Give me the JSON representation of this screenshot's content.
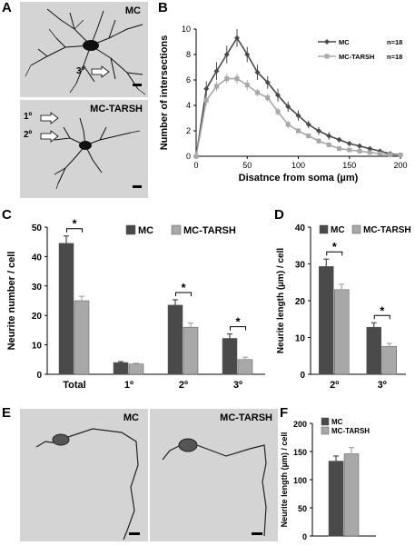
{
  "panels": {
    "A": {
      "letter": "A",
      "top_label": "MC",
      "bottom_label": "MC-TARSH",
      "arrow_3": "3º",
      "arrow_1": "1º",
      "arrow_2": "2º"
    },
    "B": {
      "letter": "B"
    },
    "C": {
      "letter": "C"
    },
    "D": {
      "letter": "D"
    },
    "E": {
      "letter": "E",
      "left_label": "MC",
      "right_label": "MC-TARSH"
    },
    "F": {
      "letter": "F"
    }
  },
  "colors": {
    "mc": "#4a4a4a",
    "tarsh": "#a8a8a8"
  },
  "chart_data": [
    {
      "id": "B",
      "type": "line",
      "xlabel": "Disatnce from soma (µm)",
      "ylabel": "Number of intersections",
      "xlim": [
        0,
        200
      ],
      "ylim": [
        0,
        10
      ],
      "xticks": [
        0,
        50,
        100,
        150,
        200
      ],
      "yticks": [
        0,
        2,
        4,
        6,
        8,
        10
      ],
      "legend_position": "top-right",
      "series": [
        {
          "name": "MC",
          "n": "n=18",
          "color": "#4a4a4a",
          "x": [
            0,
            10,
            20,
            30,
            40,
            50,
            60,
            70,
            80,
            90,
            100,
            110,
            120,
            130,
            140,
            150,
            160,
            170,
            180,
            190,
            200
          ],
          "y": [
            0,
            5.3,
            6.7,
            8.0,
            9.3,
            8.0,
            6.6,
            5.8,
            4.8,
            3.9,
            3.2,
            2.5,
            2.0,
            1.6,
            1.3,
            1.0,
            0.8,
            0.6,
            0.4,
            0.2,
            0.1
          ],
          "err": [
            0,
            0.6,
            0.7,
            0.7,
            0.7,
            0.6,
            0.6,
            0.5,
            0.5,
            0.4,
            0.4,
            0.3,
            0.3,
            0.3,
            0.2,
            0.2,
            0.2,
            0.1,
            0.1,
            0.1,
            0.1
          ]
        },
        {
          "name": "MC-TARSH",
          "n": "n=18",
          "color": "#a8a8a8",
          "x": [
            0,
            10,
            20,
            30,
            40,
            50,
            60,
            70,
            80,
            90,
            100,
            110,
            120,
            130,
            140,
            150,
            160,
            170,
            180,
            190,
            200
          ],
          "y": [
            0,
            4.4,
            5.5,
            6.1,
            6.1,
            5.6,
            5.0,
            4.6,
            3.5,
            2.5,
            2.0,
            1.6,
            1.2,
            0.9,
            0.6,
            0.5,
            0.4,
            0.3,
            0.2,
            0.1,
            0.1
          ],
          "err": [
            0,
            0.4,
            0.4,
            0.4,
            0.4,
            0.4,
            0.3,
            0.3,
            0.3,
            0.3,
            0.2,
            0.2,
            0.2,
            0.2,
            0.1,
            0.1,
            0.1,
            0.1,
            0.1,
            0.1,
            0.1
          ]
        }
      ]
    },
    {
      "id": "C",
      "type": "bar",
      "ylabel": "Neurite number / cell",
      "categories": [
        "Total",
        "1º",
        "2º",
        "3º"
      ],
      "ylim": [
        0,
        50
      ],
      "yticks": [
        0,
        10,
        20,
        30,
        40,
        50
      ],
      "legend_position": "top",
      "series": [
        {
          "name": "MC",
          "color": "#4a4a4a",
          "values": [
            44.5,
            4.0,
            23.5,
            12.2
          ],
          "err": [
            2.5,
            0.3,
            1.8,
            1.5
          ]
        },
        {
          "name": "MC-TARSH",
          "color": "#a8a8a8",
          "values": [
            25.0,
            3.5,
            16.0,
            5.0
          ],
          "err": [
            1.5,
            0.3,
            1.4,
            0.8
          ]
        }
      ],
      "significance": [
        0,
        2,
        3
      ],
      "sig_label": "*"
    },
    {
      "id": "D",
      "type": "bar",
      "ylabel": "Neurite length (µm) / cell",
      "categories": [
        "2º",
        "3º"
      ],
      "ylim": [
        0,
        40
      ],
      "yticks": [
        0,
        10,
        20,
        30,
        40
      ],
      "legend_position": "top",
      "series": [
        {
          "name": "MC",
          "color": "#4a4a4a",
          "values": [
            29.3,
            12.8
          ],
          "err": [
            2.0,
            1.2
          ]
        },
        {
          "name": "MC-TARSH",
          "color": "#a8a8a8",
          "values": [
            23.0,
            7.6
          ],
          "err": [
            1.5,
            0.8
          ]
        }
      ],
      "significance": [
        0,
        1
      ],
      "sig_label": "*"
    },
    {
      "id": "F",
      "type": "bar",
      "ylabel": "Neurite length (µm) / cell",
      "categories": [
        ""
      ],
      "ylim": [
        0,
        200
      ],
      "yticks": [
        0,
        50,
        100,
        150,
        200
      ],
      "legend_position": "top-left",
      "series": [
        {
          "name": "MC",
          "color": "#4a4a4a",
          "values": [
            133
          ],
          "err": [
            9
          ]
        },
        {
          "name": "MC-TARSH",
          "color": "#a8a8a8",
          "values": [
            146
          ],
          "err": [
            11
          ]
        }
      ]
    }
  ]
}
